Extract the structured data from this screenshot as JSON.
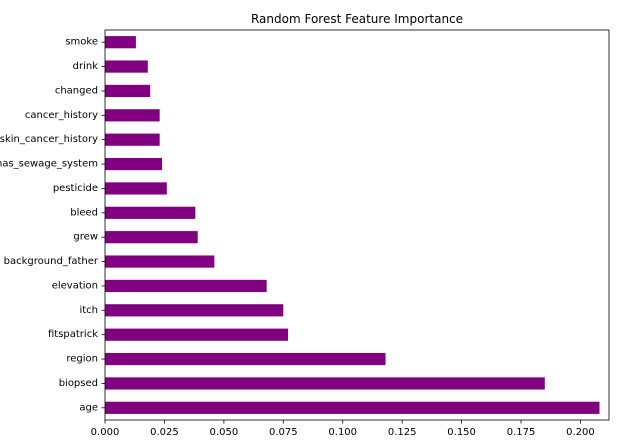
{
  "chart_data": {
    "type": "bar",
    "orientation": "horizontal",
    "title": "Random Forest Feature Importance",
    "xlabel": "",
    "ylabel": "",
    "categories": [
      "age",
      "biopsed",
      "region",
      "fitspatrick",
      "itch",
      "elevation",
      "background_father",
      "grew",
      "bleed",
      "pesticide",
      "has_sewage_system",
      "skin_cancer_history",
      "cancer_history",
      "changed",
      "drink",
      "smoke"
    ],
    "values": [
      0.208,
      0.185,
      0.118,
      0.077,
      0.075,
      0.068,
      0.046,
      0.039,
      0.038,
      0.026,
      0.024,
      0.023,
      0.023,
      0.019,
      0.018,
      0.013
    ],
    "xlim": [
      0,
      0.212
    ],
    "xticks": [
      "0.000",
      "0.025",
      "0.050",
      "0.075",
      "0.100",
      "0.125",
      "0.150",
      "0.175",
      "0.200"
    ],
    "xtick_values": [
      0,
      0.025,
      0.05,
      0.075,
      0.1,
      0.125,
      0.15,
      0.175,
      0.2
    ],
    "bar_color": "#800080",
    "grid": false,
    "legend": "none"
  }
}
